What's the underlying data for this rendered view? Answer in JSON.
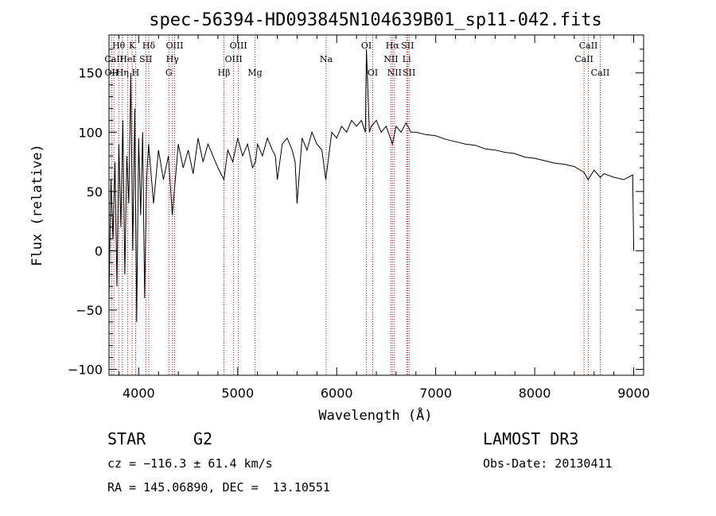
{
  "chart_data": {
    "type": "line",
    "title": "spec-56394-HD093845N104639B01_sp11-042.fits",
    "xlabel": "Wavelength (Å)",
    "ylabel": "Flux (relative)",
    "xlim": [
      3700,
      9100
    ],
    "ylim": [
      -105,
      182
    ],
    "xticks": [
      4000,
      5000,
      6000,
      7000,
      8000,
      9000
    ],
    "yticks": [
      -100,
      -50,
      0,
      50,
      100,
      150
    ],
    "series": [
      {
        "name": "spectrum",
        "x": [
          3700,
          3720,
          3740,
          3760,
          3780,
          3800,
          3820,
          3840,
          3860,
          3880,
          3900,
          3920,
          3940,
          3960,
          3980,
          4000,
          4020,
          4040,
          4060,
          4080,
          4100,
          4150,
          4200,
          4250,
          4300,
          4340,
          4400,
          4450,
          4500,
          4550,
          4600,
          4650,
          4700,
          4750,
          4800,
          4861,
          4900,
          4950,
          5000,
          5050,
          5100,
          5150,
          5180,
          5200,
          5250,
          5300,
          5350,
          5380,
          5400,
          5450,
          5500,
          5550,
          5580,
          5600,
          5650,
          5700,
          5750,
          5800,
          5850,
          5890,
          5950,
          6000,
          6050,
          6100,
          6150,
          6200,
          6250,
          6290,
          6300,
          6330,
          6350,
          6400,
          6450,
          6500,
          6563,
          6600,
          6650,
          6700,
          6750,
          6800,
          6900,
          7000,
          7100,
          7200,
          7300,
          7400,
          7500,
          7600,
          7700,
          7800,
          7900,
          8000,
          8100,
          8200,
          8300,
          8400,
          8500,
          8540,
          8600,
          8662,
          8700,
          8800,
          8900,
          8990,
          9000
        ],
        "y": [
          -40,
          60,
          10,
          75,
          -30,
          90,
          20,
          110,
          -20,
          80,
          40,
          150,
          0,
          120,
          -60,
          95,
          30,
          100,
          -40,
          60,
          90,
          40,
          85,
          60,
          80,
          30,
          90,
          70,
          85,
          65,
          95,
          75,
          90,
          80,
          70,
          60,
          85,
          75,
          95,
          80,
          90,
          70,
          75,
          90,
          80,
          95,
          85,
          80,
          60,
          90,
          95,
          85,
          75,
          40,
          95,
          85,
          100,
          90,
          85,
          60,
          100,
          95,
          105,
          100,
          110,
          105,
          110,
          100,
          170,
          100,
          105,
          110,
          100,
          105,
          90,
          105,
          100,
          108,
          100,
          100,
          98,
          97,
          94,
          92,
          90,
          89,
          86,
          85,
          83,
          82,
          79,
          78,
          76,
          74,
          73,
          71,
          66,
          60,
          68,
          62,
          65,
          62,
          60,
          64,
          0
        ]
      }
    ],
    "lines": [
      {
        "label": "OII",
        "wave": 3727,
        "row": 3
      },
      {
        "label": "Hθ",
        "wave": 3798,
        "row": 1
      },
      {
        "label": "CaII",
        "wave": 3750,
        "row": 2
      },
      {
        "label": "Hη",
        "wave": 3835,
        "row": 3
      },
      {
        "label": "HeI",
        "wave": 3889,
        "row": 2
      },
      {
        "label": "K",
        "wave": 3934,
        "row": 1
      },
      {
        "label": "H",
        "wave": 3969,
        "row": 3
      },
      {
        "label": "SII",
        "wave": 4072,
        "row": 2
      },
      {
        "label": "Hδ",
        "wave": 4102,
        "row": 1
      },
      {
        "label": "G",
        "wave": 4305,
        "row": 3
      },
      {
        "label": "Hγ",
        "wave": 4341,
        "row": 2
      },
      {
        "label": "OIII",
        "wave": 4363,
        "row": 1
      },
      {
        "label": "Hβ",
        "wave": 4861,
        "row": 3
      },
      {
        "label": "OIII",
        "wave": 4959,
        "row": 2
      },
      {
        "label": "OIII",
        "wave": 5007,
        "row": 1
      },
      {
        "label": "Mg",
        "wave": 5175,
        "row": 3
      },
      {
        "label": "Na",
        "wave": 5893,
        "row": 2
      },
      {
        "label": "OI",
        "wave": 6300,
        "row": 1
      },
      {
        "label": "OI",
        "wave": 6364,
        "row": 3
      },
      {
        "label": "NII",
        "wave": 6548,
        "row": 2
      },
      {
        "label": "Hα",
        "wave": 6563,
        "row": 1
      },
      {
        "label": "NII",
        "wave": 6583,
        "row": 3
      },
      {
        "label": "Li",
        "wave": 6707,
        "row": 2
      },
      {
        "label": "SII",
        "wave": 6716,
        "row": 1
      },
      {
        "label": "SII",
        "wave": 6731,
        "row": 3
      },
      {
        "label": "CaII",
        "wave": 8498,
        "row": 2
      },
      {
        "label": "CaII",
        "wave": 8542,
        "row": 1
      },
      {
        "label": "CaII",
        "wave": 8662,
        "row": 3
      }
    ],
    "colors": {
      "spectrum": "#000000",
      "line_marker": "#b01010"
    }
  },
  "info": {
    "object_class": "STAR",
    "subclass": "G2",
    "survey": "LAMOST DR3",
    "redshift": "cz = −116.3 ± 61.4 km/s",
    "obs_date": "Obs-Date: 20130411",
    "coords": "RA = 145.06890, DEC =  13.10551"
  }
}
